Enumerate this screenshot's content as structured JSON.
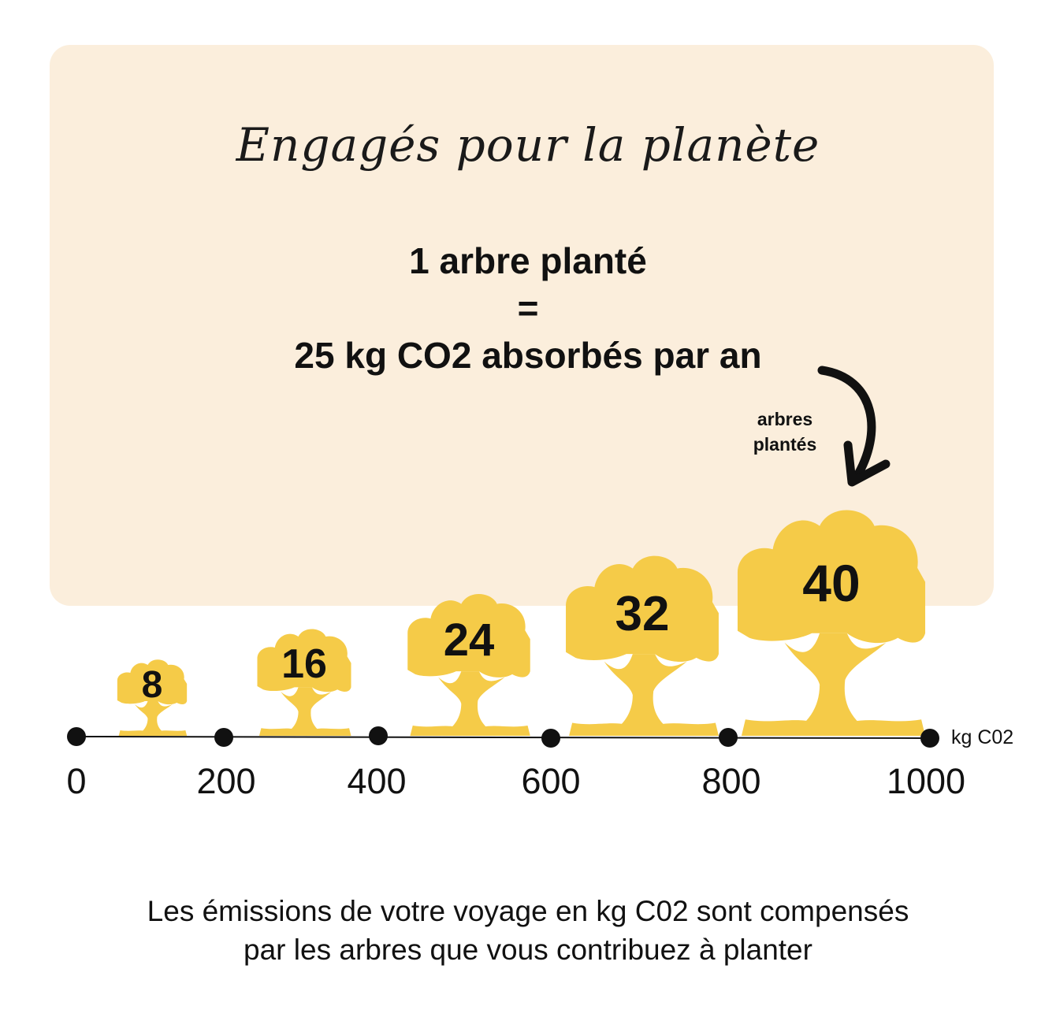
{
  "title_script": "Engagés pour la planète",
  "headline": {
    "line1": "1 arbre planté",
    "line2": "=",
    "line3": "25 kg CO2 absorbés par an"
  },
  "arrow_label": {
    "line1": "arbres",
    "line2": "plantés"
  },
  "axis": {
    "unit": "kg C02",
    "ticks": [
      "0",
      "200",
      "400",
      "600",
      "800",
      "1000"
    ]
  },
  "trees": [
    {
      "label": "8"
    },
    {
      "label": "16"
    },
    {
      "label": "24"
    },
    {
      "label": "32"
    },
    {
      "label": "40"
    }
  ],
  "caption": {
    "line1": "Les émissions de votre voyage en kg C02 sont compensés",
    "line2": "par les arbres que vous contribuez à planter"
  },
  "colors": {
    "panel": "#fbeedc",
    "tree": "#f5cb48",
    "ink": "#111111"
  }
}
